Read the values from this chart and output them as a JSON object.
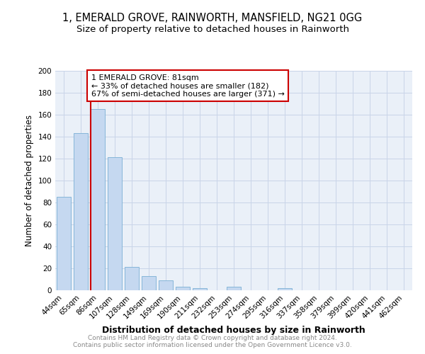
{
  "title": "1, EMERALD GROVE, RAINWORTH, MANSFIELD, NG21 0GG",
  "subtitle": "Size of property relative to detached houses in Rainworth",
  "xlabel": "Distribution of detached houses by size in Rainworth",
  "ylabel": "Number of detached properties",
  "categories": [
    "44sqm",
    "65sqm",
    "86sqm",
    "107sqm",
    "128sqm",
    "149sqm",
    "169sqm",
    "190sqm",
    "211sqm",
    "232sqm",
    "253sqm",
    "274sqm",
    "295sqm",
    "316sqm",
    "337sqm",
    "358sqm",
    "379sqm",
    "399sqm",
    "420sqm",
    "441sqm",
    "462sqm"
  ],
  "values": [
    85,
    143,
    165,
    121,
    21,
    13,
    9,
    3,
    2,
    0,
    3,
    0,
    0,
    2,
    0,
    0,
    0,
    0,
    0,
    0,
    0
  ],
  "bar_color": "#c5d8f0",
  "bar_edge_color": "#7aafd4",
  "property_line_color": "#cc0000",
  "annotation_text": "1 EMERALD GROVE: 81sqm\n← 33% of detached houses are smaller (182)\n67% of semi-detached houses are larger (371) →",
  "annotation_box_color": "#cc0000",
  "ylim": [
    0,
    200
  ],
  "yticks": [
    0,
    20,
    40,
    60,
    80,
    100,
    120,
    140,
    160,
    180,
    200
  ],
  "grid_color": "#c8d4e8",
  "bg_color": "#eaf0f8",
  "footer_line1": "Contains HM Land Registry data © Crown copyright and database right 2024.",
  "footer_line2": "Contains public sector information licensed under the Open Government Licence v3.0.",
  "title_fontsize": 10.5,
  "subtitle_fontsize": 9.5,
  "xlabel_fontsize": 9,
  "ylabel_fontsize": 8.5,
  "tick_fontsize": 7.5,
  "annotation_fontsize": 8,
  "footer_fontsize": 6.5
}
